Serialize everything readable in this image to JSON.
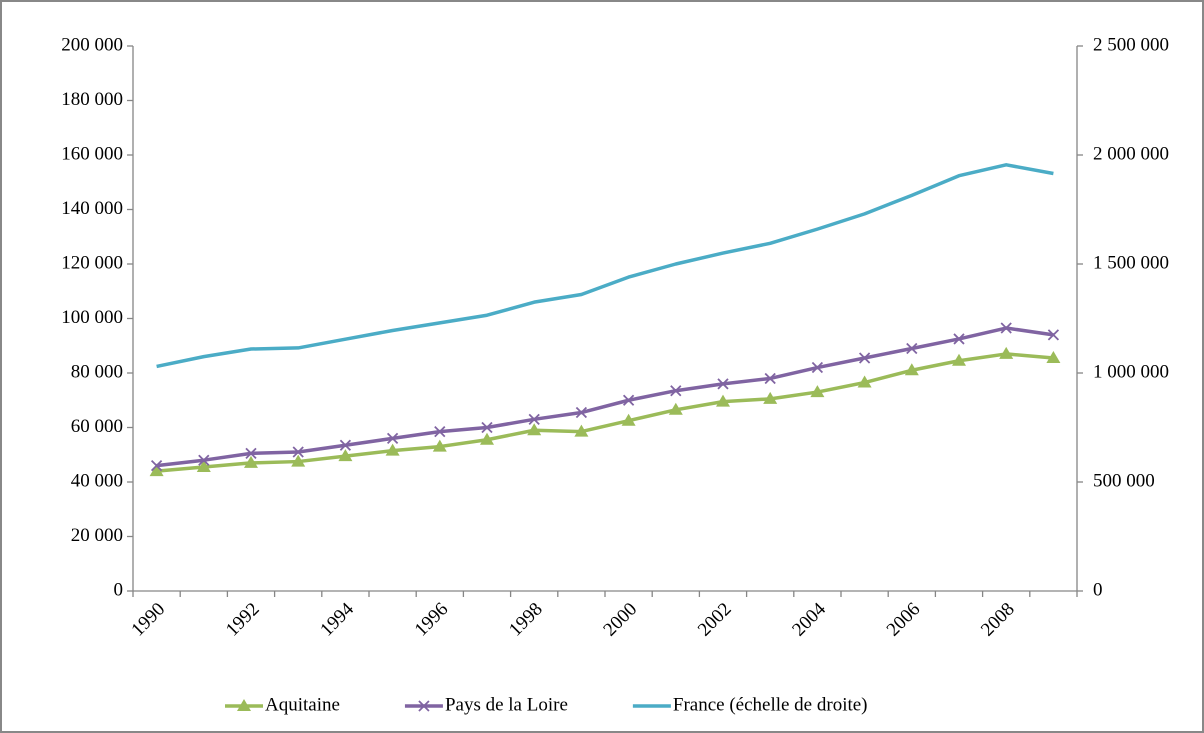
{
  "chart_data": {
    "type": "line",
    "categories": [
      "1990",
      null,
      "1992",
      null,
      "1994",
      null,
      "1996",
      null,
      "1998",
      null,
      "2000",
      null,
      "2002",
      null,
      "2004",
      null,
      "2006",
      null,
      "2008",
      null
    ],
    "series": [
      {
        "name": "Aquitaine",
        "color": "#9bbb59",
        "marker": "triangle",
        "values": [
          44000,
          45500,
          47000,
          47500,
          49500,
          51500,
          53000,
          55500,
          59000,
          58500,
          62500,
          66500,
          69500,
          70500,
          73000,
          76500,
          81000,
          84500,
          87000,
          85500
        ]
      },
      {
        "name": "Pays de la Loire",
        "color": "#8064a2",
        "marker": "x",
        "values": [
          46000,
          48000,
          50500,
          51000,
          53500,
          56000,
          58500,
          60000,
          63000,
          65500,
          70000,
          73500,
          76000,
          78000,
          82000,
          85500,
          89000,
          92500,
          96500,
          94000
        ]
      },
      {
        "name": "France (échelle de droite)",
        "color": "#4bacc6",
        "axis": "y2",
        "values": [
          1030000,
          1075000,
          1110000,
          1115000,
          1155000,
          1195000,
          1230000,
          1265000,
          1325000,
          1360000,
          1440000,
          1500000,
          1550000,
          1595000,
          1660000,
          1730000,
          1815000,
          1905000,
          1955000,
          1915000
        ]
      }
    ],
    "ylim": [
      0,
      200000
    ],
    "yticks": [
      0,
      {
        "value": 20000,
        "label": "20 000"
      },
      {
        "value": 40000,
        "label": "40 000"
      },
      {
        "value": 60000,
        "label": "60 000"
      },
      {
        "value": 80000,
        "label": "80 000"
      },
      {
        "value": 100000,
        "label": "100 000"
      },
      {
        "value": 120000,
        "label": "120 000"
      },
      {
        "value": 140000,
        "label": "140 000"
      },
      {
        "value": 160000,
        "label": "160 000"
      },
      {
        "value": 180000,
        "label": "180 000"
      },
      {
        "value": 200000,
        "label": "200 000"
      }
    ],
    "y2lim": [
      0,
      2500000
    ],
    "y2ticks": [
      0,
      {
        "value": 500000,
        "label": "500 000"
      },
      {
        "value": 1000000,
        "label": "1 000 000"
      },
      {
        "value": 1500000,
        "label": "1 500 000"
      },
      {
        "value": 2000000,
        "label": "2 000 000"
      },
      {
        "value": 2500000,
        "label": "2 500 000"
      }
    ],
    "legend": "bottom",
    "grid": false
  }
}
